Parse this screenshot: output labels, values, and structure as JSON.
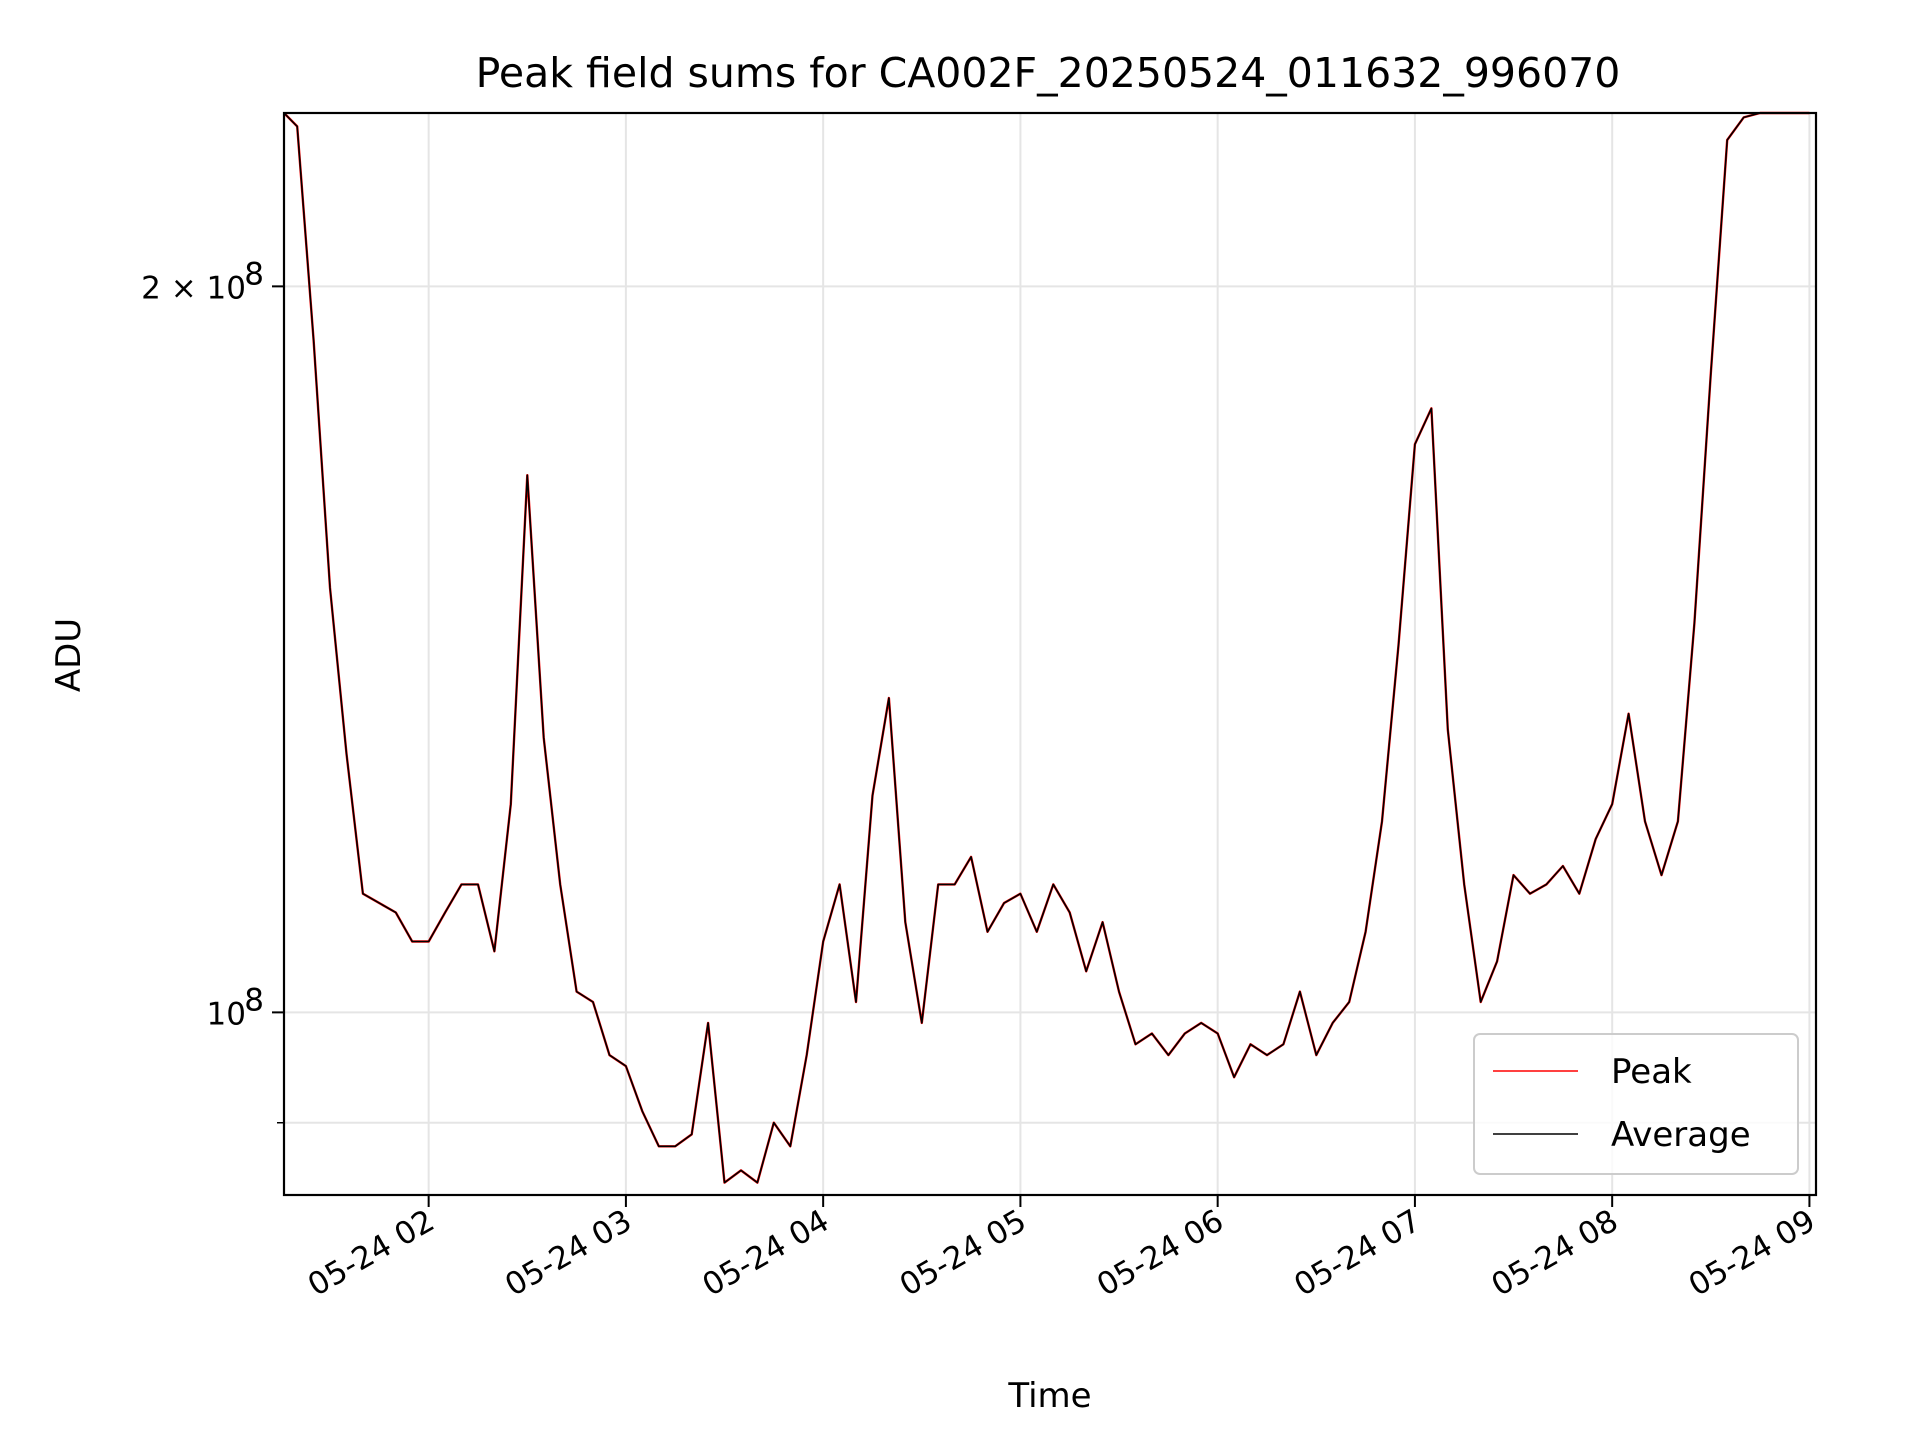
{
  "chart_data": {
    "type": "line",
    "title": "Peak field sums for CA002F_20250524_011632_996070",
    "xlabel": "Time",
    "ylabel": "ADU",
    "x_tick_labels": [
      "05-24 02",
      "05-24 03",
      "05-24 04",
      "05-24 05",
      "05-24 06",
      "05-24 07",
      "05-24 08",
      "05-24 09"
    ],
    "y_tick_labels": [
      {
        "value": 100000000,
        "label": "10",
        "exp": "8"
      },
      {
        "value": 200000000,
        "label": "2 × 10",
        "exp": "8"
      }
    ],
    "y_scale": "log",
    "ylim": [
      84000000,
      236000000
    ],
    "xlim": [
      "2025-05-24 01:16",
      "2025-05-24 09:02"
    ],
    "grid": true,
    "legend_position": "lower right",
    "legend": [
      "Peak",
      "Average"
    ],
    "x": [
      "01:16",
      "01:20",
      "01:25",
      "01:30",
      "01:35",
      "01:40",
      "01:45",
      "01:50",
      "01:55",
      "02:00",
      "02:05",
      "02:10",
      "02:15",
      "02:20",
      "02:25",
      "02:30",
      "02:35",
      "02:40",
      "02:45",
      "02:50",
      "02:55",
      "03:00",
      "03:05",
      "03:10",
      "03:15",
      "03:20",
      "03:25",
      "03:30",
      "03:35",
      "03:40",
      "03:45",
      "03:50",
      "03:55",
      "04:00",
      "04:05",
      "04:10",
      "04:15",
      "04:20",
      "04:25",
      "04:30",
      "04:35",
      "04:40",
      "04:45",
      "04:50",
      "04:55",
      "05:00",
      "05:05",
      "05:10",
      "05:15",
      "05:20",
      "05:25",
      "05:30",
      "05:35",
      "05:40",
      "05:45",
      "05:50",
      "05:55",
      "06:00",
      "06:05",
      "06:10",
      "06:15",
      "06:20",
      "06:25",
      "06:30",
      "06:35",
      "06:40",
      "06:45",
      "06:50",
      "06:55",
      "07:00",
      "07:05",
      "07:10",
      "07:15",
      "07:20",
      "07:25",
      "07:30",
      "07:35",
      "07:40",
      "07:45",
      "07:50",
      "07:55",
      "08:00",
      "08:05",
      "08:10",
      "08:15",
      "08:20",
      "08:25",
      "08:30",
      "08:35",
      "08:40",
      "08:45",
      "08:50",
      "08:55",
      "09:00"
    ],
    "series": [
      {
        "name": "Peak",
        "color": "#ff0000",
        "values": [
          236,
          233,
          190,
          150,
          128,
          112,
          111,
          110,
          107,
          107,
          110,
          113,
          113,
          106,
          122,
          167,
          130,
          113,
          102,
          101,
          96,
          95,
          91,
          88,
          88,
          89,
          99,
          85,
          86,
          85,
          90,
          88,
          96,
          107,
          113,
          101,
          123,
          135,
          109,
          99,
          113,
          113,
          116,
          108,
          111,
          112,
          108,
          113,
          110,
          104,
          109,
          102,
          97,
          98,
          96,
          98,
          99,
          98,
          94,
          97,
          96,
          97,
          102,
          96,
          99,
          101,
          108,
          120,
          142,
          172,
          178,
          131,
          113,
          101,
          105,
          114,
          112,
          113,
          115,
          112,
          118,
          122,
          133,
          120,
          114,
          120,
          145,
          184,
          230,
          235,
          236,
          236,
          236,
          236
        ]
      },
      {
        "name": "Average",
        "color": "#000000",
        "values": [
          236,
          233,
          190,
          150,
          128,
          112,
          111,
          110,
          107,
          107,
          110,
          113,
          113,
          106,
          122,
          167,
          130,
          113,
          102,
          101,
          96,
          95,
          91,
          88,
          88,
          89,
          99,
          85,
          86,
          85,
          90,
          88,
          96,
          107,
          113,
          101,
          123,
          135,
          109,
          99,
          113,
          113,
          116,
          108,
          111,
          112,
          108,
          113,
          110,
          104,
          109,
          102,
          97,
          98,
          96,
          98,
          99,
          98,
          94,
          97,
          96,
          97,
          102,
          96,
          99,
          101,
          108,
          120,
          142,
          172,
          178,
          131,
          113,
          101,
          105,
          114,
          112,
          113,
          115,
          112,
          118,
          122,
          133,
          120,
          114,
          120,
          145,
          184,
          230,
          235,
          236,
          236,
          236,
          236
        ]
      }
    ],
    "value_units": "millions of ADU"
  }
}
